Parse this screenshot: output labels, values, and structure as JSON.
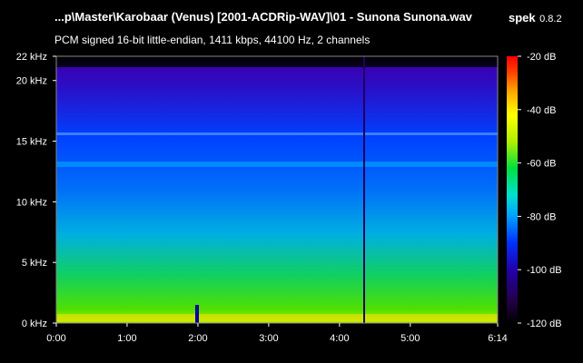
{
  "header": {
    "file_title": "...p\\Master\\Karobaar (Venus) [2001-ACDRip-WAV]\\01 - Sunona Sunona.wav",
    "app_name": "spek",
    "app_version": "0.8.2",
    "format_info": "PCM signed 16-bit little-endian, 1411 kbps, 44100 Hz, 2 channels"
  },
  "chart_data": {
    "type": "heatmap",
    "x": {
      "ticks": [
        "0:00",
        "1:00",
        "2:00",
        "3:00",
        "4:00",
        "5:00",
        "6:14"
      ],
      "tick_values_sec": [
        0,
        60,
        120,
        180,
        240,
        300,
        374
      ],
      "range_sec": [
        0,
        374
      ]
    },
    "y": {
      "ticks": [
        "0 kHz",
        "5 kHz",
        "10 kHz",
        "15 kHz",
        "20 kHz",
        "22 kHz"
      ],
      "tick_values_khz": [
        0,
        5,
        10,
        15,
        20,
        22
      ],
      "range_khz": [
        0,
        22
      ]
    },
    "colorbar": {
      "ticks": [
        "-20 dB",
        "-40 dB",
        "-60 dB",
        "-80 dB",
        "-100 dB",
        "-120 dB"
      ],
      "tick_values_db": [
        -20,
        -40,
        -60,
        -80,
        -100,
        -120
      ],
      "range_db": [
        -120,
        -20
      ],
      "colors": [
        "#000000",
        "#220044",
        "#2200aa",
        "#0030ff",
        "#00a0ff",
        "#00e0d0",
        "#00e040",
        "#b0f000",
        "#ffff00",
        "#ffb000",
        "#ff4000",
        "#ff0000"
      ]
    }
  }
}
